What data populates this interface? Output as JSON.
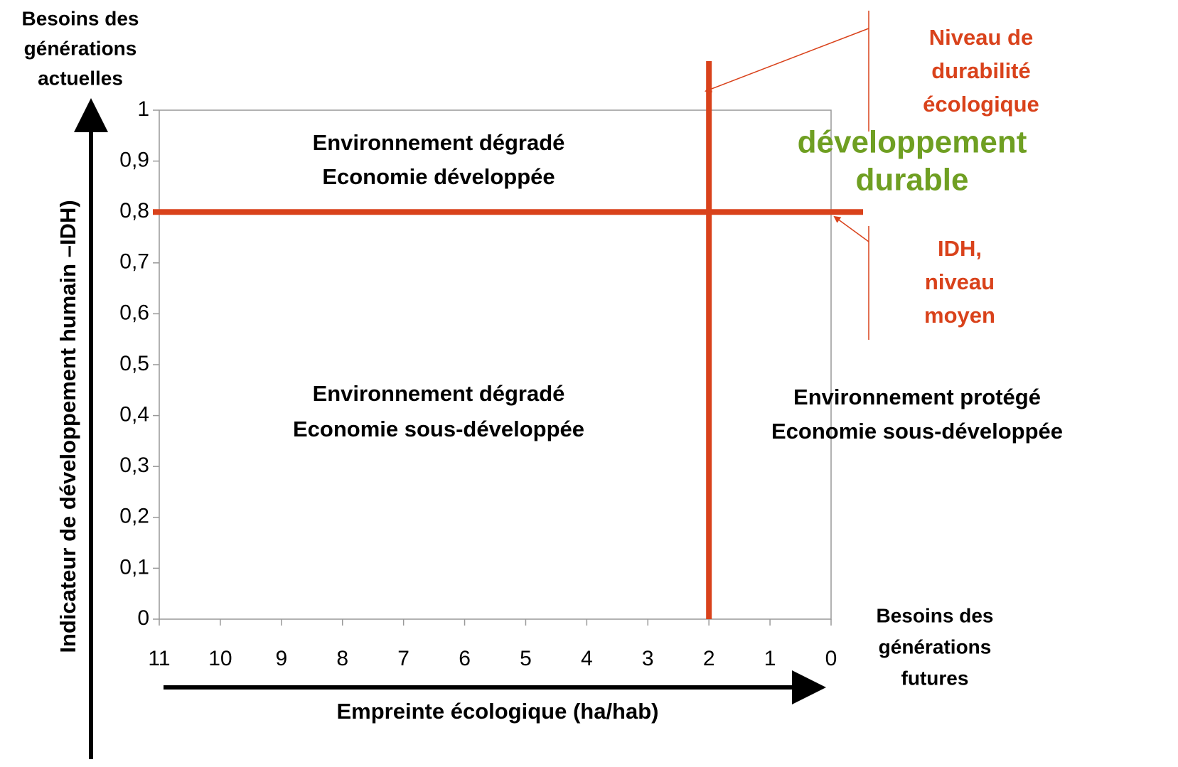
{
  "chart_data": {
    "type": "quadrant",
    "x_label": "Empreinte écologique (ha/hab)",
    "y_label": "Indicateur de développement humain –IDH)",
    "top_label": [
      "Besoins des",
      "générations",
      "actuelles"
    ],
    "right_label": [
      "Besoins des",
      "générations",
      "futures"
    ],
    "xlim": [
      11,
      0
    ],
    "xticks": [
      11,
      10,
      9,
      8,
      7,
      6,
      5,
      4,
      3,
      2,
      1,
      0
    ],
    "ylim": [
      0,
      1
    ],
    "yticks": [
      0,
      {
        "value": 0.1,
        "label": "0,1"
      },
      {
        "value": 0.2,
        "label": "0,2"
      },
      {
        "value": 0.3,
        "label": "0,3"
      },
      {
        "value": 0.4,
        "label": "0,4"
      },
      {
        "value": 0.5,
        "label": "0,5"
      },
      {
        "value": 0.6,
        "label": "0,6"
      },
      {
        "value": 0.7,
        "label": "0,7"
      },
      {
        "value": 0.8,
        "label": "0,8"
      },
      {
        "value": 0.9,
        "label": "0,9"
      },
      1
    ],
    "vline": 2,
    "hline": 0.8,
    "line_color": "#d9421b",
    "quadrants": [
      [
        "Environnement dégradé",
        "Economie développée"
      ],
      [
        "Environnement dégradé",
        "Economie sous-développée"
      ],
      [
        "Environnement protégé",
        "Economie sous-développée"
      ]
    ],
    "annotations": [
      {
        "lines": [
          "Niveau de",
          "durabilité",
          "écologique"
        ],
        "color": "#d9421b"
      },
      {
        "lines": [
          "IDH,",
          "niveau",
          "moyen"
        ],
        "color": "#d9421b"
      },
      {
        "lines": [
          "développement",
          "durable"
        ],
        "color": "#6f9f22"
      }
    ]
  }
}
